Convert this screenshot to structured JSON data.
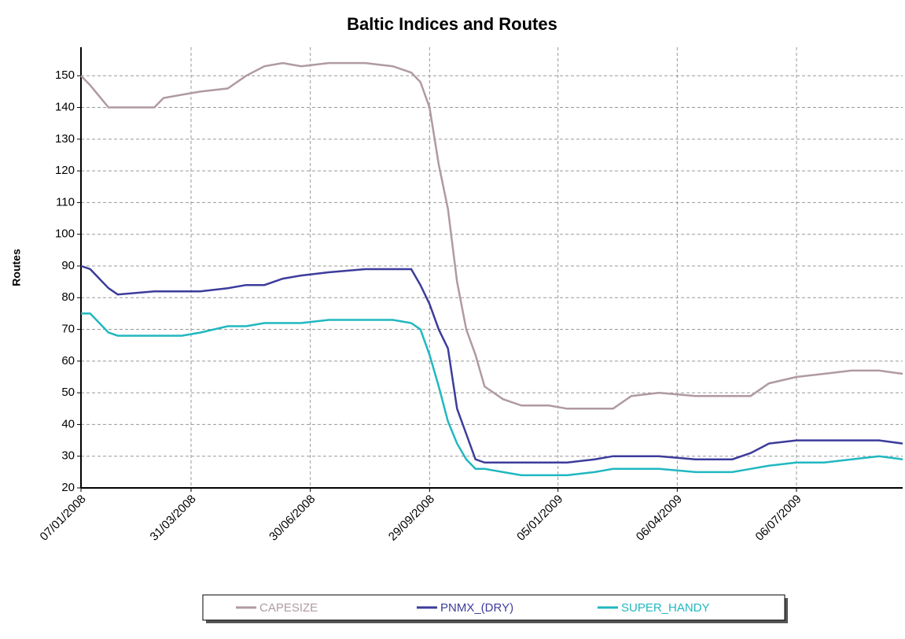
{
  "chart_data": {
    "type": "line",
    "title": "Baltic Indices and Routes",
    "y_label": "Routes",
    "x": [
      "2008-01-07",
      "2008-01-14",
      "2008-01-28",
      "2008-02-04",
      "2008-03-03",
      "2008-03-10",
      "2008-03-24",
      "2008-04-07",
      "2008-04-28",
      "2008-05-12",
      "2008-05-26",
      "2008-06-09",
      "2008-06-23",
      "2008-07-14",
      "2008-08-11",
      "2008-09-01",
      "2008-09-15",
      "2008-09-22",
      "2008-09-29",
      "2008-10-06",
      "2008-10-13",
      "2008-10-20",
      "2008-10-27",
      "2008-11-03",
      "2008-11-10",
      "2008-11-24",
      "2008-12-08",
      "2008-12-29",
      "2009-01-12",
      "2009-02-02",
      "2009-02-16",
      "2009-03-02",
      "2009-03-23",
      "2009-04-20",
      "2009-05-18",
      "2009-06-01",
      "2009-06-15",
      "2009-07-06",
      "2009-07-27",
      "2009-08-17",
      "2009-09-07",
      "2009-09-25"
    ],
    "series": [
      {
        "name": "CAPESIZE",
        "color": "#b09aa2",
        "values": [
          150,
          147,
          140,
          140,
          140,
          143,
          144,
          145,
          146,
          150,
          153,
          154,
          153,
          154,
          154,
          153,
          151,
          148,
          140,
          122,
          108,
          85,
          70,
          62,
          52,
          48,
          46,
          46,
          45,
          45,
          45,
          49,
          50,
          49,
          49,
          49,
          53,
          55,
          56,
          57,
          57,
          56
        ]
      },
      {
        "name": "PNMX_(DRY)",
        "color": "#3c3c9c",
        "values": [
          90,
          89,
          83,
          81,
          82,
          82,
          82,
          82,
          83,
          84,
          84,
          86,
          87,
          88,
          89,
          89,
          89,
          84,
          78,
          70,
          64,
          45,
          37,
          29,
          28,
          28,
          28,
          28,
          28,
          29,
          30,
          30,
          30,
          29,
          29,
          31,
          34,
          35,
          35,
          35,
          35,
          34
        ]
      },
      {
        "name": "SUPER_HANDY",
        "color": "#20b8c0",
        "values": [
          75,
          75,
          69,
          68,
          68,
          68,
          68,
          69,
          71,
          71,
          72,
          72,
          72,
          73,
          73,
          73,
          72,
          70,
          62,
          52,
          41,
          34,
          29,
          26,
          26,
          25,
          24,
          24,
          24,
          25,
          26,
          26,
          26,
          25,
          25,
          26,
          27,
          28,
          28,
          29,
          30,
          29
        ]
      }
    ],
    "xlim": [
      "2008-01-07",
      "2009-09-25"
    ],
    "xticks": [
      {
        "value": "2008-01-07",
        "label": "07/01/2008"
      },
      {
        "value": "2008-03-31",
        "label": "31/03/2008"
      },
      {
        "value": "2008-06-30",
        "label": "30/06/2008"
      },
      {
        "value": "2008-09-29",
        "label": "29/09/2008"
      },
      {
        "value": "2009-01-05",
        "label": "05/01/2009"
      },
      {
        "value": "2009-04-06",
        "label": "06/04/2009"
      },
      {
        "value": "2009-07-06",
        "label": "06/07/2009"
      }
    ],
    "ylim": [
      20,
      159
    ],
    "yticks": [
      20,
      30,
      40,
      50,
      60,
      70,
      80,
      90,
      100,
      110,
      120,
      130,
      140,
      150
    ],
    "grid": true
  }
}
